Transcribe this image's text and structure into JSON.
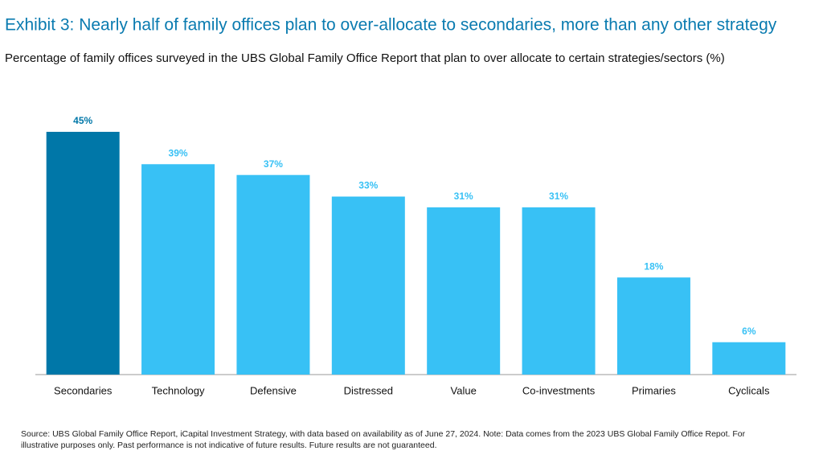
{
  "chart_data": {
    "type": "bar",
    "title": "Exhibit 3: Nearly half of family offices plan to over-allocate to secondaries, more than any other strategy",
    "subtitle": "Percentage of family offices surveyed in the UBS Global Family Office Report that plan to over allocate to certain strategies/sectors (%)",
    "categories": [
      "Secondaries",
      "Technology",
      "Defensive",
      "Distressed",
      "Value",
      "Co-investments",
      "Primaries",
      "Cyclicals"
    ],
    "values": [
      45,
      39,
      37,
      33,
      31,
      31,
      18,
      6
    ],
    "value_labels": [
      "45%",
      "39%",
      "37%",
      "33%",
      "31%",
      "31%",
      "18%",
      "6%"
    ],
    "colors": [
      "#0077a8",
      "#38c1f5",
      "#38c1f5",
      "#38c1f5",
      "#38c1f5",
      "#38c1f5",
      "#38c1f5",
      "#38c1f5"
    ],
    "footnote": [
      "Source: UBS Global Family Office Report, iCapital Investment Strategy, with data based on availability as of June 27, 2024. Note: Data comes from the 2023 UBS Global Family Office Repot. For",
      "illustrative purposes only. Past performance is not indicative of future results. Future results are not guaranteed."
    ]
  }
}
